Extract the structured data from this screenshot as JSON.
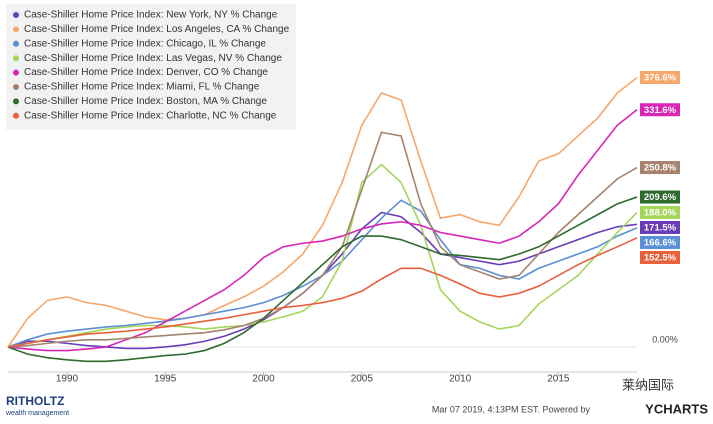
{
  "chart_data": {
    "type": "line",
    "x": [
      1987,
      1988,
      1989,
      1990,
      1991,
      1992,
      1993,
      1994,
      1995,
      1996,
      1997,
      1998,
      1999,
      2000,
      2001,
      2002,
      2003,
      2004,
      2005,
      2006,
      2007,
      2008,
      2009,
      2010,
      2011,
      2012,
      2013,
      2014,
      2015,
      2016,
      2017,
      2018,
      2019
    ],
    "xlim": [
      1987,
      2019
    ],
    "xticks": [
      1990,
      1995,
      2000,
      2005,
      2010,
      2015
    ],
    "ylim": [
      -35,
      485
    ],
    "yticks": [
      {
        "value": 0,
        "label": "0.00%"
      }
    ],
    "series": [
      {
        "name": "Case-Shiller Home Price Index: New York, NY % Change",
        "color": "#6a3db8",
        "values": [
          0,
          8,
          8,
          5,
          2,
          0,
          -2,
          -2,
          0,
          3,
          8,
          15,
          25,
          38,
          55,
          75,
          100,
          130,
          165,
          188,
          182,
          160,
          130,
          125,
          120,
          115,
          120,
          130,
          140,
          150,
          160,
          168,
          171.5
        ],
        "end_label": "171.5%"
      },
      {
        "name": "Case-Shiller Home Price Index: Los Angeles, CA % Change",
        "color": "#f7a76a",
        "values": [
          0,
          40,
          65,
          70,
          62,
          58,
          50,
          42,
          38,
          40,
          45,
          58,
          70,
          85,
          105,
          130,
          170,
          230,
          310,
          355,
          345,
          260,
          180,
          185,
          175,
          170,
          210,
          260,
          270,
          295,
          320,
          355,
          376.6
        ],
        "end_label": "376.6%"
      },
      {
        "name": "Case-Shiller Home Price Index: Chicago, IL % Change",
        "color": "#5b8fd6",
        "values": [
          0,
          10,
          18,
          22,
          25,
          28,
          30,
          33,
          36,
          40,
          45,
          50,
          55,
          62,
          72,
          85,
          100,
          120,
          150,
          180,
          205,
          190,
          150,
          115,
          110,
          100,
          95,
          110,
          120,
          130,
          140,
          155,
          166.6
        ],
        "end_label": "166.6%"
      },
      {
        "name": "Case-Shiller Home Price Index: Las Vegas, NV % Change",
        "color": "#a5d65b",
        "values": [
          0,
          5,
          10,
          15,
          20,
          25,
          28,
          30,
          30,
          28,
          25,
          28,
          30,
          35,
          42,
          50,
          70,
          120,
          230,
          255,
          230,
          170,
          80,
          50,
          35,
          25,
          30,
          60,
          80,
          100,
          130,
          160,
          188.0
        ],
        "end_label": "188.0%"
      },
      {
        "name": "Case-Shiller Home Price Index: Denver, CO % Change",
        "color": "#d926b7",
        "values": [
          0,
          -3,
          -5,
          -5,
          -3,
          0,
          10,
          20,
          35,
          50,
          65,
          80,
          100,
          125,
          140,
          145,
          148,
          155,
          165,
          172,
          175,
          170,
          160,
          155,
          150,
          145,
          155,
          175,
          200,
          240,
          275,
          310,
          331.6
        ],
        "end_label": "331.6%"
      },
      {
        "name": "Case-Shiller Home Price Index: Miami, FL % Change",
        "color": "#a6836d",
        "values": [
          0,
          2,
          5,
          8,
          10,
          10,
          12,
          14,
          16,
          18,
          20,
          24,
          30,
          40,
          55,
          75,
          100,
          140,
          220,
          300,
          295,
          200,
          140,
          115,
          105,
          95,
          100,
          130,
          160,
          185,
          210,
          235,
          250.8
        ],
        "end_label": "250.8%"
      },
      {
        "name": "Case-Shiller Home Price Index: Boston, MA % Change",
        "color": "#2e6b2e",
        "values": [
          0,
          -10,
          -15,
          -18,
          -20,
          -20,
          -18,
          -15,
          -12,
          -10,
          -5,
          5,
          20,
          40,
          65,
          90,
          115,
          140,
          155,
          155,
          150,
          140,
          130,
          128,
          125,
          122,
          130,
          140,
          155,
          170,
          185,
          200,
          209.6
        ],
        "end_label": "209.6%"
      },
      {
        "name": "Case-Shiller Home Price Index: Charlotte, NC % Change",
        "color": "#e8603c",
        "values": [
          0,
          5,
          10,
          14,
          18,
          20,
          22,
          25,
          28,
          32,
          36,
          40,
          45,
          50,
          55,
          58,
          62,
          68,
          78,
          95,
          110,
          110,
          100,
          88,
          75,
          70,
          75,
          85,
          100,
          115,
          128,
          140,
          152.5
        ],
        "end_label": "152.5%"
      }
    ]
  },
  "footer": {
    "timestamp": "Mar 07 2019, 4:13PM EST.  Powered by",
    "brand": "YCHARTS",
    "logo": "RITHOLTZ",
    "logo_sub": "wealth management",
    "watermark": "莱纳国际"
  }
}
